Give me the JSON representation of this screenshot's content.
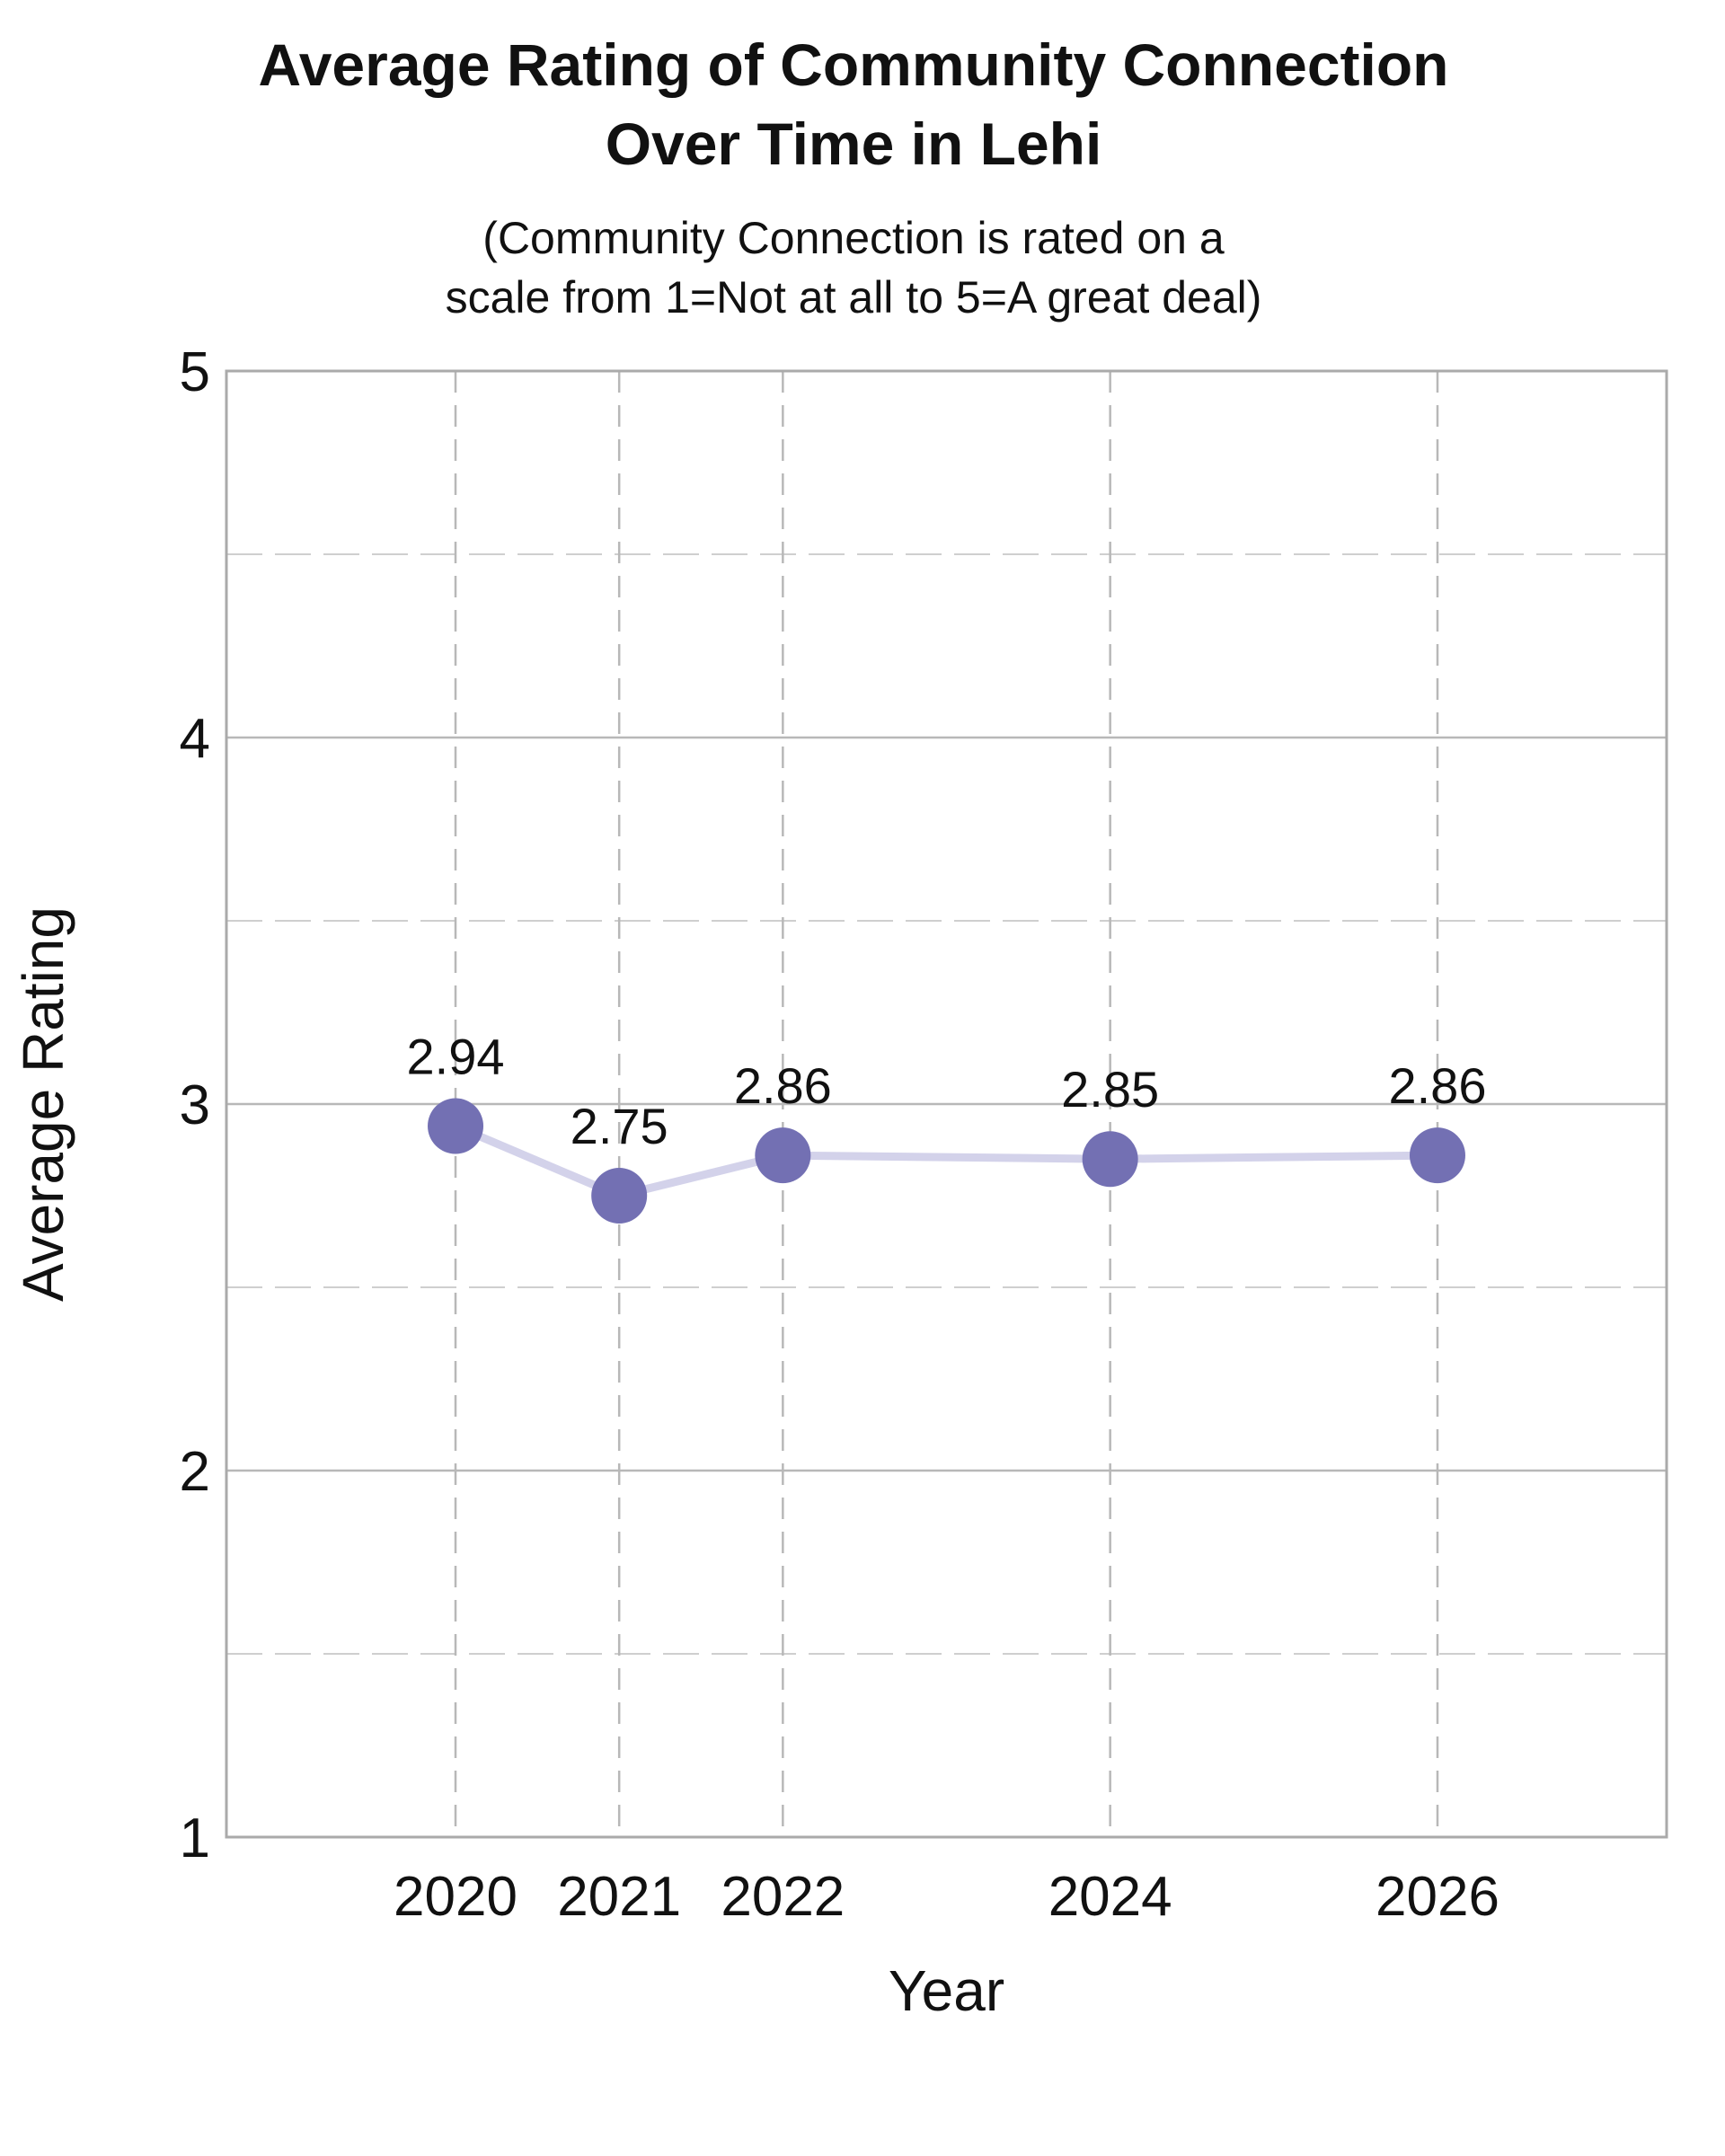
{
  "title_lines": [
    "Average Rating of Community Connection",
    "Over Time in Lehi"
  ],
  "subtitle_lines": [
    "(Community Connection is rated on a",
    "scale from 1=Not at all to 5=A great deal)"
  ],
  "colors": {
    "marker": "#7370b3",
    "line": "#d3d2ea",
    "frame": "#aaaaaa",
    "grid": "#b8b8b8"
  },
  "chart_data": {
    "type": "line",
    "title": "Average Rating of Community Connection Over Time in Lehi",
    "subtitle": "(Community Connection is rated on a scale from 1=Not at all to 5=A great deal)",
    "xlabel": "Year",
    "ylabel": "Average Rating",
    "x": [
      2020,
      2021,
      2022,
      2024,
      2026
    ],
    "values": [
      2.94,
      2.75,
      2.86,
      2.85,
      2.86
    ],
    "value_labels": [
      "2.94",
      "2.75",
      "2.86",
      "2.85",
      "2.86"
    ],
    "xlim": [
      2018.6,
      2027.4
    ],
    "ylim": [
      1,
      5
    ],
    "x_ticks": [
      "2020",
      "2021",
      "2022",
      "2024",
      "2026"
    ],
    "y_ticks": [
      1,
      2,
      3,
      4,
      5
    ],
    "y_minor_ticks": [
      1.5,
      2.5,
      3.5,
      4.5
    ],
    "grid": true,
    "legend": "none"
  }
}
